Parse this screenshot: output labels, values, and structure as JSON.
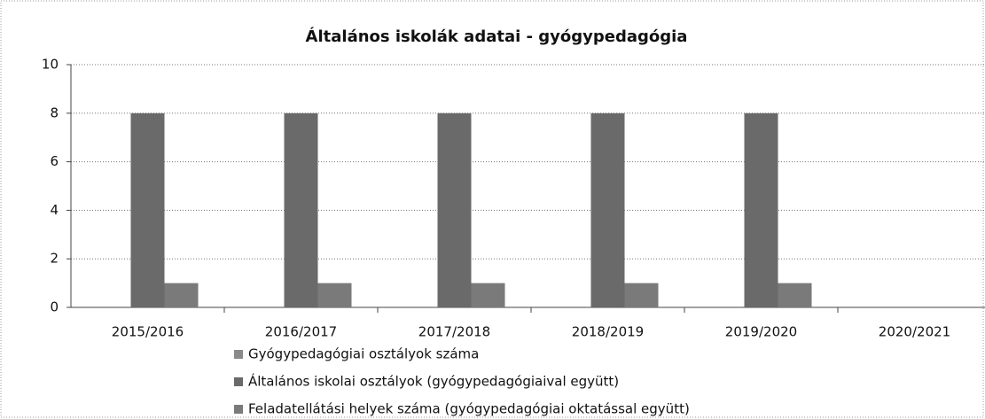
{
  "chart_data": {
    "type": "bar",
    "title": "Általános iskolák adatai - gyógypedagógia",
    "categories": [
      "2015/2016",
      "2016/2017",
      "2017/2018",
      "2018/2019",
      "2019/2020",
      "2020/2021"
    ],
    "series": [
      {
        "name": "Gyógypedagógiai osztályok száma",
        "color": "#8a8a8a",
        "values": [
          0,
          0,
          0,
          0,
          0,
          0
        ]
      },
      {
        "name": "Általános iskolai osztályok (gyógypedagógiaival együtt)",
        "color": "#6a6a6a",
        "values": [
          8,
          8,
          8,
          8,
          8,
          0
        ]
      },
      {
        "name": "Feladatellátási helyek száma (gyógypedagógiai oktatással együtt)",
        "color": "#7a7a7a",
        "values": [
          1,
          1,
          1,
          1,
          1,
          0
        ]
      }
    ],
    "ylim": [
      0,
      10
    ],
    "yticks": [
      0,
      2,
      4,
      6,
      8,
      10
    ],
    "grid": true,
    "legend": "bottom"
  }
}
